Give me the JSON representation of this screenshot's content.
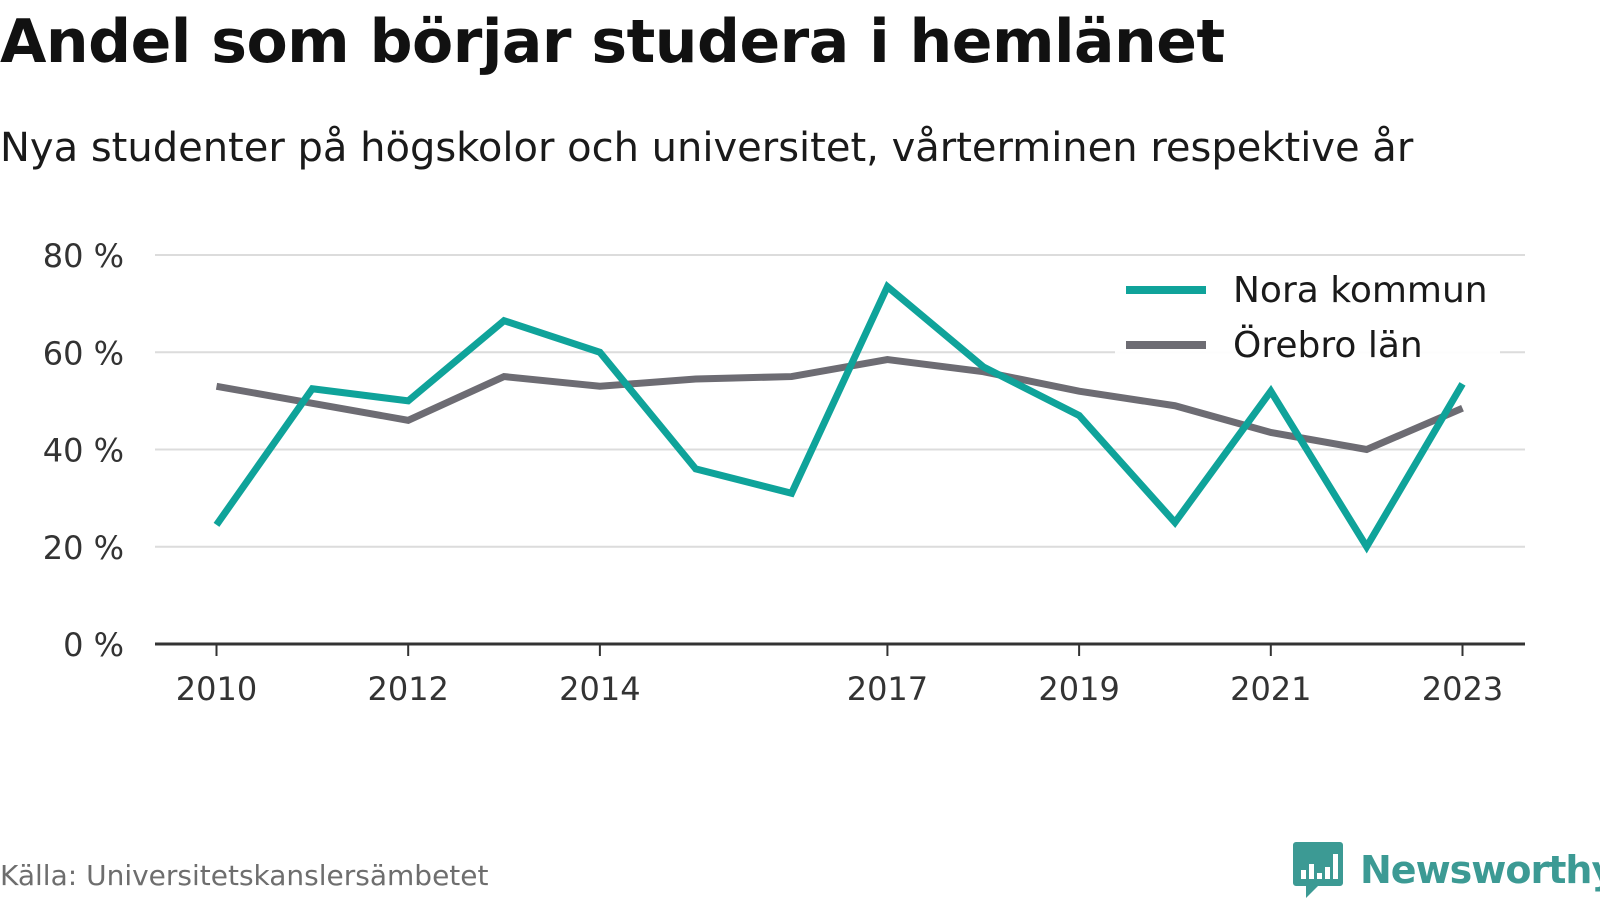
{
  "title": "Andel som börjar studera i hemlänet",
  "subtitle": "Nya studenter på högskolor och universitet, vårterminen respektive år",
  "source": "Källa: Universitetskanslersämbetet",
  "brand": {
    "name": "Newsworthy",
    "icon": "bar-chart-speech-bubble-icon",
    "color": "#3c9a94"
  },
  "chart_data": {
    "type": "line",
    "x": [
      2010,
      2011,
      2012,
      2013,
      2014,
      2015,
      2016,
      2017,
      2018,
      2019,
      2020,
      2021,
      2022,
      2023
    ],
    "x_tick_labels": [
      "2010",
      "2012",
      "2014",
      "2017",
      "2019",
      "2021",
      "2023"
    ],
    "y_ticks": [
      0,
      20,
      40,
      60,
      80
    ],
    "y_tick_labels": [
      "0 %",
      "20 %",
      "40 %",
      "60 %",
      "80 %"
    ],
    "ylim": [
      0,
      80
    ],
    "xlim": [
      2009.4,
      2023.65
    ],
    "grid": true,
    "legend_position": "top-right",
    "series": [
      {
        "name": "Nora kommun",
        "color": "#0fa39a",
        "values": [
          24.5,
          52.5,
          50,
          66.5,
          60,
          36,
          31,
          73.5,
          57,
          47,
          25,
          52,
          20,
          53.5
        ]
      },
      {
        "name": "Örebro län",
        "color": "#6d6c73",
        "values": [
          53,
          49.5,
          46,
          55,
          53,
          54.5,
          55,
          58.5,
          56,
          52,
          49,
          43.5,
          40,
          48.5
        ]
      }
    ]
  }
}
